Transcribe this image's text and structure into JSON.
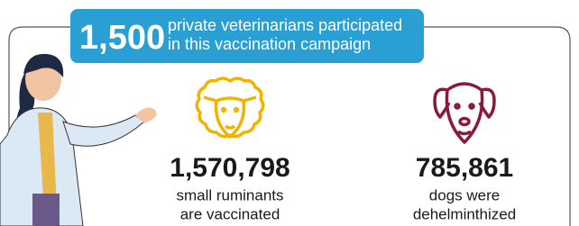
{
  "banner": {
    "number": "1,500",
    "lines": [
      "private veterinarians participated",
      "in this vaccination campaign"
    ]
  },
  "stats": [
    {
      "number": "1,570,798",
      "lines": [
        "small ruminants",
        "are vaccinated"
      ]
    },
    {
      "number": "785,861",
      "lines": [
        "dogs were",
        "dehelminthized"
      ]
    }
  ]
}
